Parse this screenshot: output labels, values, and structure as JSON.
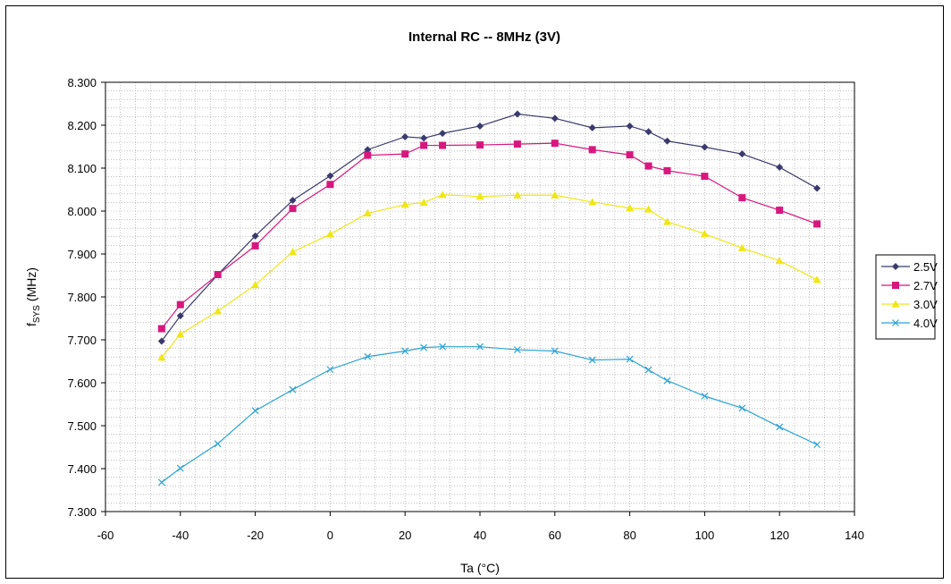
{
  "chart_data": {
    "type": "line",
    "title": "Internal RC -- 8MHz (3V)",
    "xlabel": "Ta (°C)",
    "ylabel_main": "f",
    "ylabel_sub": "SYS",
    "ylabel_unit": "(MHz)",
    "xlim": [
      -60,
      140
    ],
    "ylim": [
      7.3,
      8.3
    ],
    "x_ticks": [
      "-60",
      "-40",
      "-20",
      "0",
      "20",
      "40",
      "60",
      "80",
      "100",
      "120",
      "140"
    ],
    "x_tick_values": [
      -60,
      -40,
      -20,
      0,
      20,
      40,
      60,
      80,
      100,
      120,
      140
    ],
    "y_ticks": [
      "7.300",
      "7.400",
      "7.500",
      "7.600",
      "7.700",
      "7.800",
      "7.900",
      "8.000",
      "8.100",
      "8.200",
      "8.300"
    ],
    "y_tick_values": [
      7.3,
      7.4,
      7.5,
      7.6,
      7.7,
      7.8,
      7.9,
      8.0,
      8.1,
      8.2,
      8.3
    ],
    "grid": true,
    "legend_position": "right",
    "x": [
      -45,
      -40,
      -30,
      -20,
      -10,
      0,
      10,
      20,
      25,
      30,
      40,
      50,
      60,
      70,
      80,
      85,
      90,
      100,
      110,
      120,
      130
    ],
    "series": [
      {
        "name": "2.5V",
        "color": "#3a3a6e",
        "marker": "diamond",
        "values": [
          7.697,
          7.756,
          7.852,
          7.942,
          8.025,
          8.082,
          8.143,
          8.173,
          8.17,
          8.181,
          8.198,
          8.226,
          8.216,
          8.194,
          8.198,
          8.185,
          8.163,
          8.149,
          8.133,
          8.102,
          8.053
        ]
      },
      {
        "name": "2.7V",
        "color": "#d8177e",
        "marker": "square",
        "values": [
          7.726,
          7.782,
          7.852,
          7.919,
          8.006,
          8.062,
          8.13,
          8.133,
          8.153,
          8.153,
          8.154,
          8.156,
          8.158,
          8.143,
          8.131,
          8.105,
          8.094,
          8.081,
          8.031,
          8.002,
          7.97
        ]
      },
      {
        "name": "3.0V",
        "color": "#f0e614",
        "marker": "triangle",
        "values": [
          7.659,
          7.713,
          7.767,
          7.828,
          7.905,
          7.946,
          7.995,
          8.015,
          8.02,
          8.038,
          8.034,
          8.037,
          8.037,
          8.021,
          8.007,
          8.004,
          7.975,
          7.947,
          7.914,
          7.884,
          7.84
        ]
      },
      {
        "name": "4.0V",
        "color": "#2ba3d6",
        "marker": "x",
        "values": [
          7.368,
          7.401,
          7.458,
          7.535,
          7.584,
          7.631,
          7.661,
          7.674,
          7.682,
          7.684,
          7.684,
          7.677,
          7.674,
          7.653,
          7.655,
          7.63,
          7.605,
          7.569,
          7.541,
          7.497,
          7.456
        ]
      }
    ]
  }
}
